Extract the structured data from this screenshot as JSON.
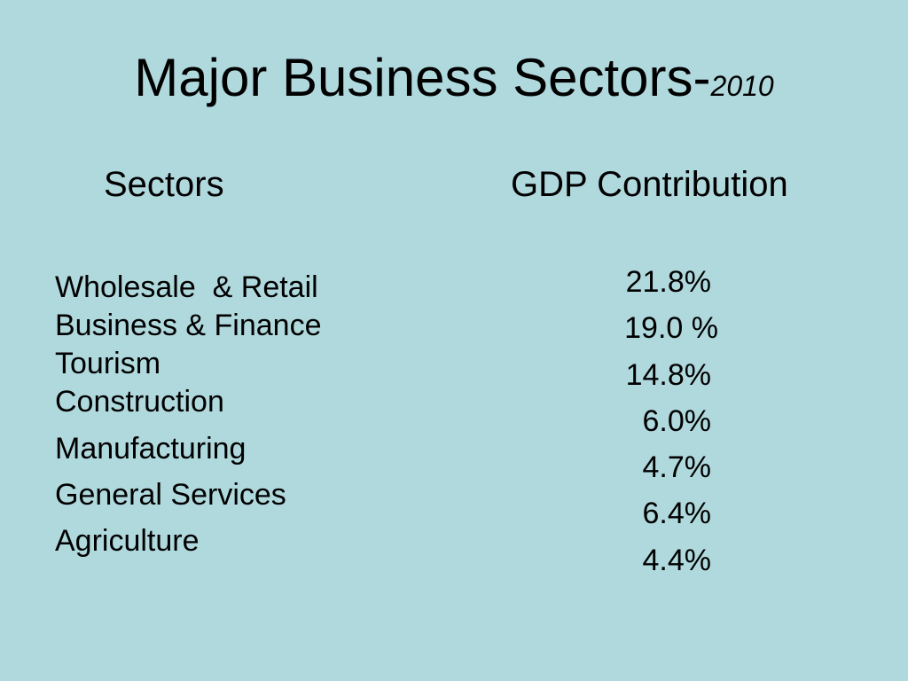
{
  "title": {
    "main": "Major Business Sectors-",
    "year": "2010"
  },
  "headers": {
    "sectors": "Sectors",
    "gdp": "GDP Contribution"
  },
  "sectors": [
    "Wholesale  & Retail",
    "Business & Finance",
    "Tourism",
    "Construction",
    "Manufacturing",
    "General Services",
    "Agriculture"
  ],
  "gdp_values": [
    "21.8%",
    "19.0 %",
    "14.8%",
    "6.0%",
    "4.7%",
    "6.4%",
    "4.4%"
  ],
  "colors": {
    "background": "#b0d9de",
    "text": "#000000"
  }
}
